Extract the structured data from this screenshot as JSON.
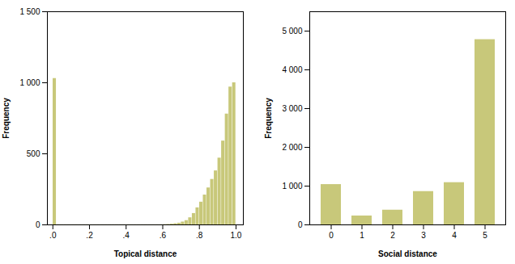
{
  "chart_data": [
    {
      "type": "histogram",
      "xlabel": "Topical distance",
      "ylabel": "Frequency",
      "color": "#c8c87a",
      "bins": [
        0,
        0.02,
        0.04,
        0.06,
        0.08,
        0.1,
        0.12,
        0.14,
        0.16,
        0.18,
        0.2,
        0.22,
        0.24,
        0.26,
        0.28,
        0.3,
        0.32,
        0.34,
        0.36,
        0.38,
        0.4,
        0.42,
        0.44,
        0.46,
        0.48,
        0.5,
        0.52,
        0.54,
        0.56,
        0.58,
        0.6,
        0.62,
        0.64,
        0.66,
        0.68,
        0.7,
        0.72,
        0.74,
        0.76,
        0.78,
        0.8,
        0.82,
        0.84,
        0.86,
        0.88,
        0.9,
        0.92,
        0.94,
        0.96,
        0.98,
        1
      ],
      "values": [
        1030,
        1,
        1,
        1,
        1,
        1,
        1,
        1,
        1,
        1,
        1,
        1,
        1,
        1,
        1,
        1,
        1,
        1,
        1,
        1,
        1,
        1,
        1,
        1,
        1,
        1,
        1,
        1,
        1,
        1,
        2,
        3,
        5,
        8,
        12,
        20,
        30,
        50,
        80,
        120,
        160,
        210,
        260,
        320,
        380,
        470,
        590,
        780,
        970,
        1000
      ],
      "xlim": [
        -0.03,
        1.04
      ],
      "xticks": [
        {
          "value": 0,
          "label": ".0"
        },
        {
          "value": 0.2,
          "label": ".2"
        },
        {
          "value": 0.4,
          "label": ".4"
        },
        {
          "value": 0.6,
          "label": ".6"
        },
        {
          "value": 0.8,
          "label": ".8"
        },
        {
          "value": 1,
          "label": "1.0"
        }
      ],
      "ylim": [
        0,
        1500
      ],
      "yticks": [
        0,
        500,
        {
          "value": 1000,
          "label": "1 000"
        },
        {
          "value": 1500,
          "label": "1 500"
        }
      ]
    },
    {
      "type": "bar",
      "xlabel": "Social distance",
      "ylabel": "Frequency",
      "color": "#c8c87a",
      "categories": [
        "0",
        "1",
        "2",
        "3",
        "4",
        "5"
      ],
      "values": [
        1040,
        230,
        380,
        860,
        1090,
        4780
      ],
      "ylim": [
        0,
        5500
      ],
      "yticks": [
        0,
        {
          "value": 1000,
          "label": "1 000"
        },
        {
          "value": 2000,
          "label": "2 000"
        },
        {
          "value": 3000,
          "label": "3 000"
        },
        {
          "value": 4000,
          "label": "4 000"
        },
        {
          "value": 5000,
          "label": "5 000"
        }
      ]
    }
  ]
}
